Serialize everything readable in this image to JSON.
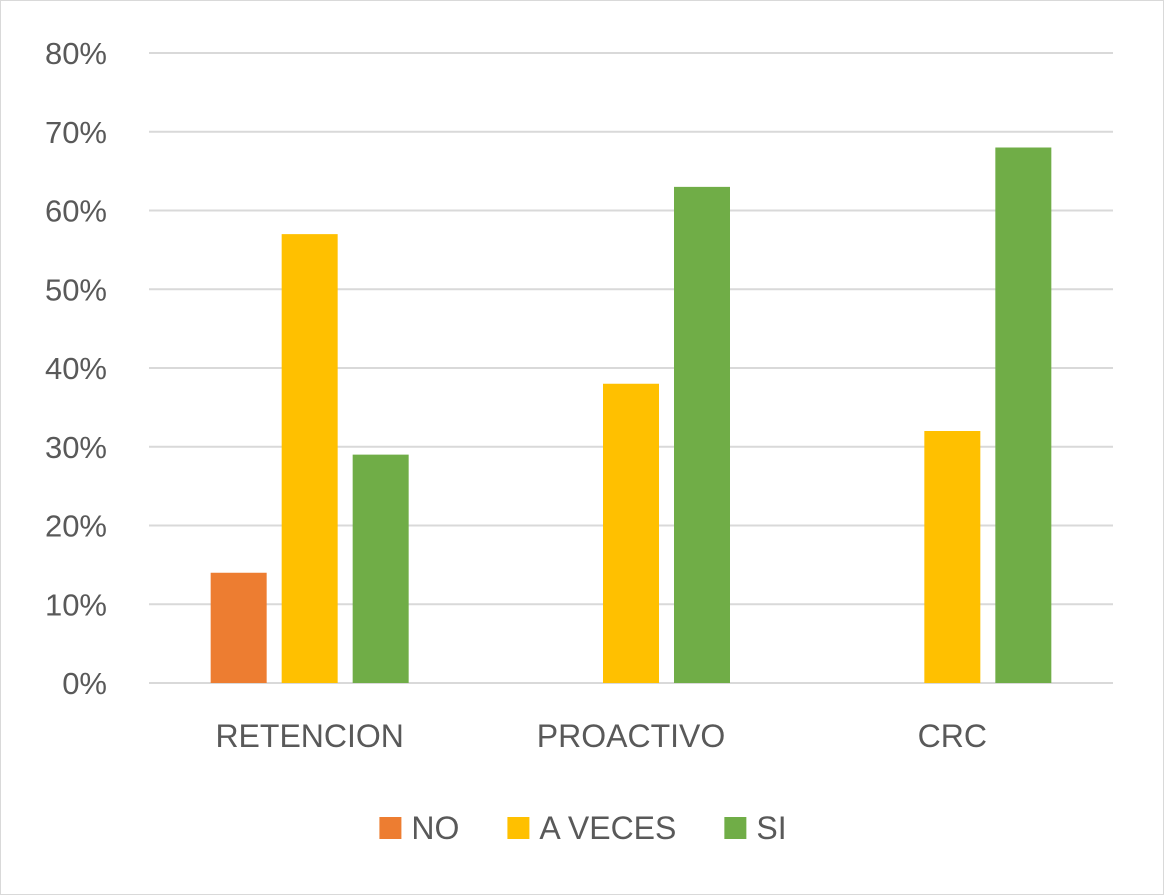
{
  "chart_data": {
    "type": "bar",
    "title": "",
    "xlabel": "",
    "ylabel": "",
    "categories": [
      "RETENCION",
      "PROACTIVO",
      "CRC"
    ],
    "series": [
      {
        "name": "NO",
        "color": "#ED7D31",
        "values": [
          14,
          0,
          0
        ]
      },
      {
        "name": "A VECES",
        "color": "#FFC000",
        "values": [
          57,
          38,
          32
        ]
      },
      {
        "name": "SI",
        "color": "#70AD47",
        "values": [
          29,
          63,
          68
        ]
      }
    ],
    "y_ticks": [
      "0%",
      "10%",
      "20%",
      "30%",
      "40%",
      "50%",
      "60%",
      "70%",
      "80%"
    ],
    "ylim": [
      0,
      80
    ],
    "y_unit": "%",
    "grid": true,
    "legend_position": "bottom"
  }
}
